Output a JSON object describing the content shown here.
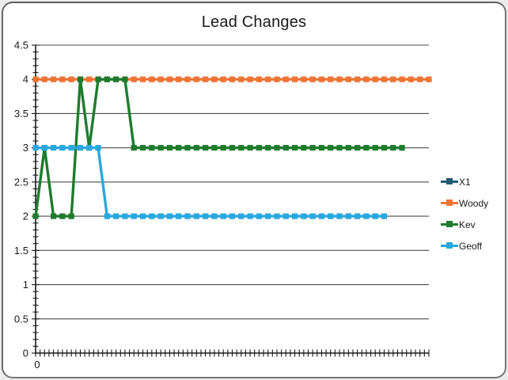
{
  "chart_data": {
    "type": "line",
    "title": "Lead Changes",
    "xlabel": "",
    "ylabel": "",
    "ylim": [
      0,
      4.5
    ],
    "y_ticks": [
      0,
      0.5,
      1,
      1.5,
      2,
      2.5,
      3,
      3.5,
      4,
      4.5
    ],
    "y_minor_tick_step": 0.1,
    "x_first_tick_label": "0",
    "x_tick_count": 89,
    "grid": "horizontal",
    "legend_position": "right",
    "marker": "square",
    "axis_color": "#1a1a1a",
    "gridline_color": "#4d4d4d",
    "text_color": "#1a1a1a",
    "series": [
      {
        "name": "X1",
        "color": "#1f5c73",
        "values": []
      },
      {
        "name": "Woody",
        "color": "#ed7434",
        "values": [
          4,
          4,
          4,
          4,
          4,
          4,
          4,
          4,
          4,
          4,
          4,
          4,
          4,
          4,
          4,
          4,
          4,
          4,
          4,
          4,
          4,
          4,
          4,
          4,
          4,
          4,
          4,
          4,
          4,
          4,
          4,
          4,
          4,
          4,
          4,
          4,
          4,
          4,
          4,
          4,
          4,
          4,
          4,
          4,
          4
        ]
      },
      {
        "name": "Kev",
        "color": "#1e7b2e",
        "values": [
          2,
          3,
          2,
          2,
          2,
          4,
          3,
          4,
          4,
          4,
          4,
          3,
          3,
          3,
          3,
          3,
          3,
          3,
          3,
          3,
          3,
          3,
          3,
          3,
          3,
          3,
          3,
          3,
          3,
          3,
          3,
          3,
          3,
          3,
          3,
          3,
          3,
          3,
          3,
          3,
          3,
          3
        ]
      },
      {
        "name": "Geoff",
        "color": "#2ba7df",
        "values": [
          3,
          3,
          3,
          3,
          3,
          3,
          3,
          3,
          2,
          2,
          2,
          2,
          2,
          2,
          2,
          2,
          2,
          2,
          2,
          2,
          2,
          2,
          2,
          2,
          2,
          2,
          2,
          2,
          2,
          2,
          2,
          2,
          2,
          2,
          2,
          2,
          2,
          2,
          2,
          2
        ]
      }
    ]
  }
}
